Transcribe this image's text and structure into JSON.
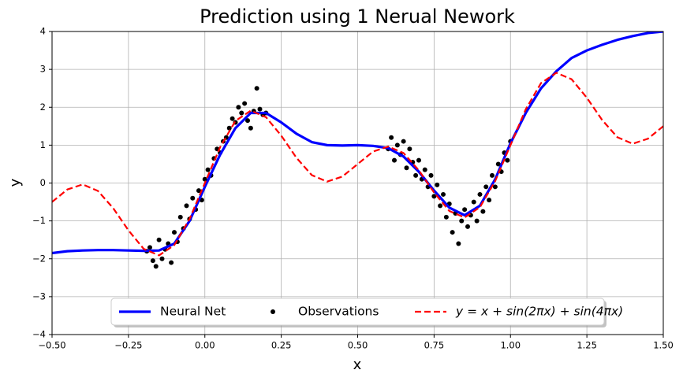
{
  "chart_data": {
    "type": "line",
    "title": "Prediction using 1 Nerual Nework",
    "xlabel": "x",
    "ylabel": "y",
    "xlim": [
      -0.5,
      1.5
    ],
    "ylim": [
      -4,
      4
    ],
    "xticks": [
      {
        "value": -0.5,
        "label": "−0.50"
      },
      {
        "value": -0.25,
        "label": "−0.25"
      },
      {
        "value": 0,
        "label": "0.00"
      },
      {
        "value": 0.25,
        "label": "0.25"
      },
      {
        "value": 0.5,
        "label": "0.50"
      },
      {
        "value": 0.75,
        "label": "0.75"
      },
      {
        "value": 1,
        "label": "1.00"
      },
      {
        "value": 1.25,
        "label": "1.25"
      },
      {
        "value": 1.5,
        "label": "1.50"
      }
    ],
    "yticks": [
      {
        "value": -4,
        "label": "−4"
      },
      {
        "value": -3,
        "label": "−3"
      },
      {
        "value": -2,
        "label": "−2"
      },
      {
        "value": -1,
        "label": "−1"
      },
      0,
      1,
      2,
      3,
      4
    ],
    "grid": true,
    "legend": "lower center",
    "x": [
      -0.5,
      -0.45,
      -0.4,
      -0.35,
      -0.3,
      -0.25,
      -0.2,
      -0.15,
      -0.1,
      -0.05,
      0,
      0.05,
      0.1,
      0.15,
      0.2,
      0.25,
      0.3,
      0.35,
      0.4,
      0.45,
      0.5,
      0.55,
      0.6,
      0.65,
      0.7,
      0.75,
      0.8,
      0.85,
      0.9,
      0.95,
      1.0,
      1.05,
      1.1,
      1.15,
      1.2,
      1.25,
      1.3,
      1.35,
      1.4,
      1.45,
      1.5
    ],
    "series": [
      {
        "name": "Neural Net",
        "color": "#0000ff",
        "style": "solid",
        "values": [
          -1.85,
          -1.8,
          -1.78,
          -1.77,
          -1.77,
          -1.78,
          -1.79,
          -1.78,
          -1.6,
          -1.0,
          -0.1,
          0.75,
          1.45,
          1.85,
          1.85,
          1.6,
          1.3,
          1.08,
          1.0,
          0.99,
          1.0,
          0.98,
          0.92,
          0.7,
          0.3,
          -0.2,
          -0.65,
          -0.85,
          -0.6,
          0.1,
          1.05,
          1.85,
          2.5,
          2.95,
          3.3,
          3.5,
          3.65,
          3.78,
          3.88,
          3.96,
          4.0
        ]
      },
      {
        "name": "Observations",
        "color": "#000000",
        "style": "marker",
        "x": [
          -0.19,
          -0.18,
          -0.17,
          -0.16,
          -0.15,
          -0.14,
          -0.13,
          -0.12,
          -0.11,
          -0.1,
          -0.09,
          -0.08,
          -0.07,
          -0.06,
          -0.05,
          -0.04,
          -0.03,
          -0.02,
          -0.01,
          0.0,
          0.01,
          0.02,
          0.03,
          0.04,
          0.05,
          0.06,
          0.07,
          0.08,
          0.09,
          0.1,
          0.11,
          0.12,
          0.13,
          0.14,
          0.15,
          0.16,
          0.17,
          0.18,
          0.19,
          0.2,
          0.6,
          0.61,
          0.62,
          0.63,
          0.64,
          0.65,
          0.66,
          0.67,
          0.68,
          0.69,
          0.7,
          0.71,
          0.72,
          0.73,
          0.74,
          0.75,
          0.76,
          0.77,
          0.78,
          0.79,
          0.8,
          0.81,
          0.82,
          0.83,
          0.84,
          0.85,
          0.86,
          0.87,
          0.88,
          0.89,
          0.9,
          0.91,
          0.92,
          0.93,
          0.94,
          0.95,
          0.96,
          0.97,
          0.98,
          0.99,
          1.0
        ],
        "values": [
          -1.8,
          -1.7,
          -2.05,
          -2.2,
          -1.5,
          -2.0,
          -1.75,
          -1.6,
          -2.1,
          -1.3,
          -1.55,
          -0.9,
          -1.2,
          -0.6,
          -0.95,
          -0.4,
          -0.7,
          -0.2,
          -0.45,
          0.1,
          0.35,
          0.2,
          0.65,
          0.9,
          0.8,
          1.1,
          1.2,
          1.45,
          1.7,
          1.6,
          2.0,
          1.85,
          2.1,
          1.65,
          1.45,
          1.9,
          2.5,
          1.95,
          1.8,
          1.85,
          0.9,
          1.2,
          0.6,
          1.0,
          0.75,
          1.1,
          0.4,
          0.9,
          0.55,
          0.2,
          0.6,
          0.1,
          0.35,
          -0.1,
          0.2,
          -0.35,
          -0.05,
          -0.6,
          -0.3,
          -0.9,
          -0.55,
          -1.3,
          -0.8,
          -1.6,
          -1.0,
          -0.7,
          -1.15,
          -0.85,
          -0.5,
          -1.0,
          -0.3,
          -0.75,
          -0.1,
          -0.45,
          0.2,
          -0.1,
          0.5,
          0.3,
          0.8,
          0.6,
          1.1
        ]
      },
      {
        "name": "y = x + sin(2πx) + sin(4πx)",
        "color": "#ff0000",
        "style": "dashed",
        "values": [
          -0.5,
          -0.171,
          -0.037,
          -0.208,
          -0.663,
          -1.25,
          -1.739,
          -1.91,
          -1.639,
          -0.947,
          0,
          0.947,
          1.639,
          1.91,
          1.739,
          1.25,
          0.663,
          0.208,
          0.037,
          0.171,
          0.5,
          0.829,
          0.963,
          0.792,
          0.337,
          -0.25,
          -0.739,
          -0.91,
          -0.639,
          0.053,
          1,
          1.947,
          2.639,
          2.91,
          2.739,
          2.25,
          1.663,
          1.208,
          1.037,
          1.171,
          1.5
        ]
      }
    ]
  }
}
